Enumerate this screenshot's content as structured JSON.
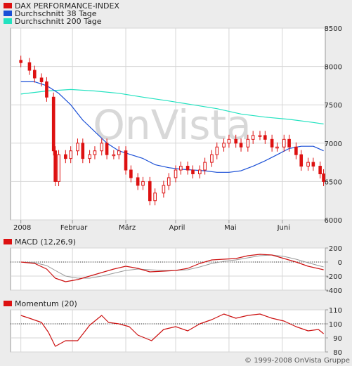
{
  "colors": {
    "background": "#ececec",
    "panel": "#ffffff",
    "frame": "#9a9a9a",
    "grid": "#d6d6d6",
    "price": "#dd1111",
    "ma38": "#1a4fd6",
    "ma200": "#22e2c0",
    "macd": "#cc1111",
    "signal": "#999999",
    "momentum": "#cc1111",
    "watermark": "#d8d8d8",
    "text": "#222222"
  },
  "watermark": "OnVista",
  "copyright": "© 1999-2008 OnVista Gruppe",
  "chart_data": [
    {
      "type": "line",
      "title": "",
      "legend_position": "top-left",
      "grid": true,
      "candle_style": "ohlc-candlestick",
      "xlabel": "",
      "ylabel": "",
      "x_tick_labels": [
        {
          "label": "2008",
          "x": "2008-01-02"
        },
        {
          "label": "Februar",
          "x": "2008-02-01"
        },
        {
          "label": "März",
          "x": "2008-03-03"
        },
        {
          "label": "April",
          "x": "2008-04-01"
        },
        {
          "label": "Mai",
          "x": "2008-05-02"
        },
        {
          "label": "Juni",
          "x": "2008-06-02"
        }
      ],
      "xlim": [
        "2007-12-27",
        "2008-06-27"
      ],
      "ylim": [
        6000,
        8500
      ],
      "y_ticks": [
        6000,
        6500,
        7000,
        7500,
        8000,
        8500
      ],
      "series": [
        {
          "name": "DAX PERFORMANCE-INDEX",
          "x": [
            "2008-01-02",
            "2008-01-07",
            "2008-01-10",
            "2008-01-14",
            "2008-01-17",
            "2008-01-21",
            "2008-01-22",
            "2008-01-24",
            "2008-01-28",
            "2008-01-31",
            "2008-02-04",
            "2008-02-07",
            "2008-02-11",
            "2008-02-14",
            "2008-02-18",
            "2008-02-21",
            "2008-02-25",
            "2008-02-28",
            "2008-03-03",
            "2008-03-06",
            "2008-03-10",
            "2008-03-13",
            "2008-03-17",
            "2008-03-20",
            "2008-03-25",
            "2008-03-28",
            "2008-04-01",
            "2008-04-04",
            "2008-04-08",
            "2008-04-11",
            "2008-04-15",
            "2008-04-18",
            "2008-04-22",
            "2008-04-25",
            "2008-04-29",
            "2008-05-02",
            "2008-05-06",
            "2008-05-09",
            "2008-05-13",
            "2008-05-16",
            "2008-05-20",
            "2008-05-23",
            "2008-05-27",
            "2008-05-30",
            "2008-06-03",
            "2008-06-06",
            "2008-06-10",
            "2008-06-13",
            "2008-06-17",
            "2008-06-20",
            "2008-06-24",
            "2008-06-26"
          ],
          "values": [
            8050,
            7950,
            7850,
            7800,
            7600,
            6900,
            6500,
            6850,
            6800,
            6900,
            7000,
            6800,
            6850,
            6900,
            7000,
            6850,
            6850,
            6900,
            6650,
            6550,
            6450,
            6500,
            6250,
            6350,
            6450,
            6550,
            6650,
            6700,
            6650,
            6600,
            6650,
            6750,
            6850,
            6950,
            7000,
            7050,
            7000,
            6950,
            7050,
            7100,
            7100,
            7050,
            6950,
            6950,
            7050,
            6950,
            6850,
            6700,
            6750,
            6700,
            6600,
            6500
          ]
        },
        {
          "name": "Durchschnitt 38 Tage",
          "x": [
            "2008-01-02",
            "2008-01-10",
            "2008-01-17",
            "2008-01-24",
            "2008-01-31",
            "2008-02-07",
            "2008-02-14",
            "2008-02-21",
            "2008-02-28",
            "2008-03-06",
            "2008-03-13",
            "2008-03-20",
            "2008-03-28",
            "2008-04-04",
            "2008-04-11",
            "2008-04-18",
            "2008-04-25",
            "2008-05-02",
            "2008-05-09",
            "2008-05-16",
            "2008-05-23",
            "2008-05-30",
            "2008-06-06",
            "2008-06-13",
            "2008-06-20",
            "2008-06-26"
          ],
          "values": [
            7800,
            7800,
            7750,
            7650,
            7500,
            7300,
            7150,
            7000,
            6900,
            6850,
            6800,
            6720,
            6680,
            6660,
            6650,
            6640,
            6620,
            6620,
            6640,
            6700,
            6770,
            6850,
            6930,
            6960,
            6960,
            6900
          ]
        },
        {
          "name": "Durchschnitt 200 Tage",
          "x": [
            "2008-01-02",
            "2008-01-17",
            "2008-01-31",
            "2008-02-14",
            "2008-02-28",
            "2008-03-13",
            "2008-03-28",
            "2008-04-11",
            "2008-04-25",
            "2008-05-09",
            "2008-05-23",
            "2008-06-06",
            "2008-06-20",
            "2008-06-26"
          ],
          "values": [
            7640,
            7680,
            7700,
            7680,
            7650,
            7600,
            7550,
            7500,
            7450,
            7380,
            7340,
            7310,
            7270,
            7250
          ]
        }
      ]
    },
    {
      "type": "line",
      "title": "MACD (12,26,9)",
      "ylim": [
        -400,
        200
      ],
      "y_ticks": [
        -400,
        -200,
        0,
        200
      ],
      "zero_line": 0,
      "series": [
        {
          "name": "MACD",
          "x": [
            "2008-01-02",
            "2008-01-10",
            "2008-01-17",
            "2008-01-22",
            "2008-01-28",
            "2008-02-04",
            "2008-02-11",
            "2008-02-18",
            "2008-02-25",
            "2008-03-03",
            "2008-03-10",
            "2008-03-17",
            "2008-03-25",
            "2008-04-01",
            "2008-04-08",
            "2008-04-15",
            "2008-04-22",
            "2008-04-29",
            "2008-05-06",
            "2008-05-13",
            "2008-05-20",
            "2008-05-27",
            "2008-06-03",
            "2008-06-10",
            "2008-06-17",
            "2008-06-26"
          ],
          "values": [
            0,
            -20,
            -100,
            -230,
            -280,
            -250,
            -200,
            -150,
            -100,
            -60,
            -90,
            -140,
            -130,
            -120,
            -90,
            -20,
            30,
            40,
            50,
            90,
            110,
            100,
            50,
            0,
            -60,
            -110
          ]
        },
        {
          "x": [
            "2008-01-02",
            "2008-01-10",
            "2008-01-17",
            "2008-01-22",
            "2008-01-28",
            "2008-02-04",
            "2008-02-11",
            "2008-02-18",
            "2008-02-25",
            "2008-03-03",
            "2008-03-10",
            "2008-03-17",
            "2008-03-25",
            "2008-04-01",
            "2008-04-08",
            "2008-04-15",
            "2008-04-22",
            "2008-04-29",
            "2008-05-06",
            "2008-05-13",
            "2008-05-20",
            "2008-05-27",
            "2008-06-03",
            "2008-06-10",
            "2008-06-17",
            "2008-06-26"
          ],
          "values": [
            0,
            -10,
            -50,
            -120,
            -200,
            -230,
            -230,
            -200,
            -160,
            -120,
            -100,
            -110,
            -120,
            -120,
            -110,
            -70,
            -20,
            10,
            30,
            60,
            90,
            100,
            80,
            40,
            -10,
            -70
          ]
        }
      ]
    },
    {
      "type": "line",
      "title": "Momentum (20)",
      "ylim": [
        80,
        110
      ],
      "y_ticks": [
        80,
        90,
        100,
        110
      ],
      "reference_line": 100,
      "series": [
        {
          "name": "Momentum",
          "x": [
            "2008-01-02",
            "2008-01-07",
            "2008-01-14",
            "2008-01-18",
            "2008-01-22",
            "2008-01-28",
            "2008-02-04",
            "2008-02-11",
            "2008-02-18",
            "2008-02-22",
            "2008-02-28",
            "2008-03-05",
            "2008-03-10",
            "2008-03-14",
            "2008-03-18",
            "2008-03-25",
            "2008-04-01",
            "2008-04-08",
            "2008-04-15",
            "2008-04-22",
            "2008-04-29",
            "2008-05-06",
            "2008-05-13",
            "2008-05-20",
            "2008-05-27",
            "2008-06-03",
            "2008-06-10",
            "2008-06-17",
            "2008-06-23",
            "2008-06-26"
          ],
          "values": [
            106,
            104,
            101,
            94,
            84,
            88,
            88,
            99,
            106,
            101,
            100,
            98,
            92,
            90,
            88,
            96,
            98,
            95,
            100,
            103,
            107,
            104,
            106,
            107,
            104,
            102,
            98,
            95,
            96,
            93
          ]
        }
      ]
    }
  ]
}
